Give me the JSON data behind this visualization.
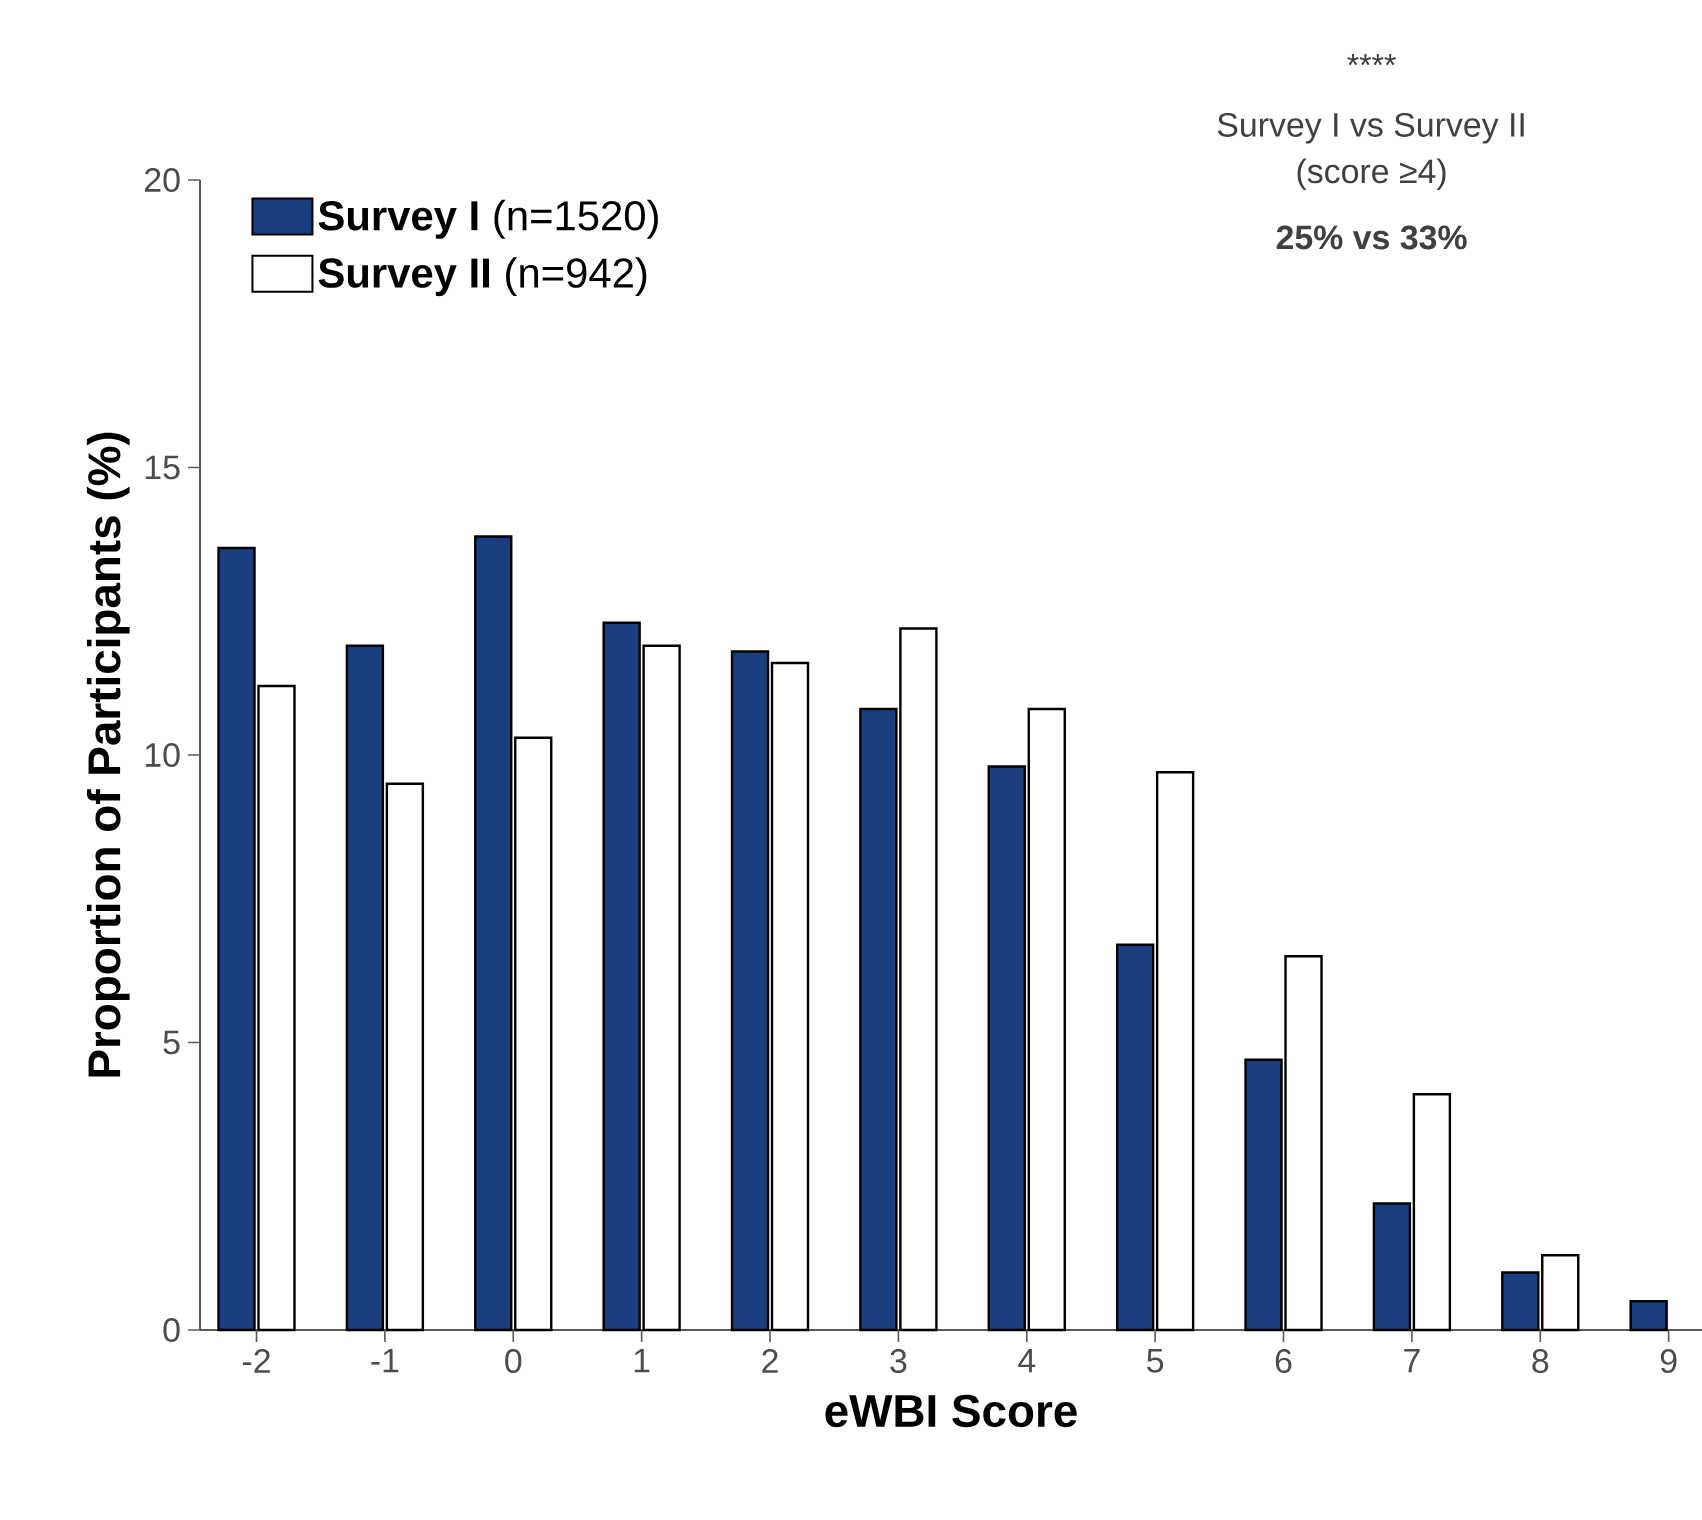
{
  "chart_data": {
    "type": "bar",
    "xlabel": "eWBI Score",
    "ylabel": "Proportion of Participants (%)",
    "categories": [
      "-2",
      "-1",
      "0",
      "1",
      "2",
      "3",
      "4",
      "5",
      "6",
      "7",
      "8",
      "9"
    ],
    "series": [
      {
        "name": "**Survey I** (n=1520)",
        "color": "#1a3f80",
        "values": [
          13.6,
          11.9,
          13.8,
          12.3,
          11.8,
          10.8,
          9.8,
          6.7,
          4.7,
          2.2,
          1.0,
          0.5
        ]
      },
      {
        "name": "**Survey II** (n=942)",
        "color": "#ffffff",
        "values": [
          11.2,
          9.5,
          10.3,
          11.9,
          11.6,
          12.2,
          10.8,
          9.7,
          6.5,
          4.1,
          1.3,
          null
        ]
      }
    ],
    "ylim": [
      0,
      20
    ],
    "yticks": [
      0,
      5,
      10,
      15,
      20
    ],
    "grid": false,
    "legend": "top left",
    "annotations": [
      "****",
      "Survey I vs Survey II",
      "(score ≥4)",
      "**25% vs 33%**"
    ]
  }
}
